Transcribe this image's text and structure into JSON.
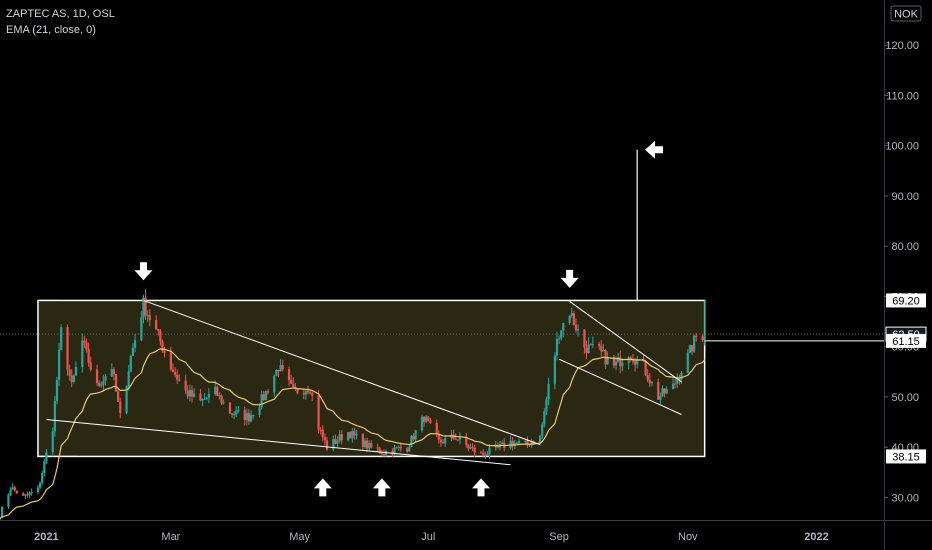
{
  "header": {
    "symbol_line": "ZAPTEC AS, 1D, OSL",
    "indicator_line": "EMA (21, close, 0)"
  },
  "currency_badge": "NOK",
  "colors": {
    "background": "#000000",
    "up_candle": "#26a69a",
    "down_candle": "#ef5350",
    "ema": "#e8c96b",
    "range_fill": "#2a2712",
    "lines": "#ffffff",
    "axis_text": "#b2b5be"
  },
  "chart_data": {
    "type": "candlestick",
    "title": "ZAPTEC AS, 1D, OSL",
    "x_tick_labels": [
      "2021",
      "Mar",
      "May",
      "Jul",
      "Sep",
      "Nov",
      "2022"
    ],
    "y_tick_labels": [
      "30.00",
      "40.00",
      "50.00",
      "60.00",
      "70.00",
      "80.00",
      "90.00",
      "100.00",
      "110.00",
      "120.00"
    ],
    "ylim": [
      25.5,
      129
    ],
    "xlim": [
      "2020-12-10",
      "2022-02-02"
    ],
    "price_tags": [
      {
        "label": "69.20",
        "value": 69.2,
        "style": "white"
      },
      {
        "label": "62.50",
        "value": 62.5,
        "style": "dark"
      },
      {
        "label": "61.15",
        "value": 61.15,
        "style": "white"
      },
      {
        "label": "38.15",
        "value": 38.15,
        "style": "white"
      }
    ],
    "range_box": {
      "low": 38.15,
      "high": 69.2,
      "start": "2020-12-28",
      "end": "2021-11-09"
    },
    "ema_period": 21,
    "projection": {
      "date": "2021-10-08",
      "from": 69.2,
      "to": 99.2
    },
    "trendlines": [
      {
        "from": [
          "2021-02-16",
          69.2
        ],
        "to": [
          "2021-08-23",
          40.5
        ]
      },
      {
        "from": [
          "2021-01-01",
          45.5
        ],
        "to": [
          "2021-08-09",
          36.5
        ]
      },
      {
        "from": [
          "2021-09-06",
          69.0
        ],
        "to": [
          "2021-10-29",
          53.0
        ]
      },
      {
        "from": [
          "2021-09-01",
          57.5
        ],
        "to": [
          "2021-10-29",
          46.5
        ]
      }
    ],
    "arrows": [
      {
        "direction": "down",
        "date": "2021-02-16",
        "price": 75.0
      },
      {
        "direction": "down",
        "date": "2021-09-06",
        "price": 73.5
      },
      {
        "direction": "up",
        "date": "2021-05-12",
        "price": 32.0
      },
      {
        "direction": "up",
        "date": "2021-06-09",
        "price": 32.0
      },
      {
        "direction": "up",
        "date": "2021-07-26",
        "price": 32.0
      },
      {
        "direction": "left",
        "date": "2021-10-16",
        "price": 99.2
      }
    ],
    "anchor_points": [
      [
        "2020-12-10",
        26.5
      ],
      [
        "2020-12-15",
        32
      ],
      [
        "2020-12-21",
        30
      ],
      [
        "2020-12-28",
        31.5
      ],
      [
        "2021-01-04",
        44
      ],
      [
        "2021-01-08",
        63
      ],
      [
        "2021-01-13",
        52
      ],
      [
        "2021-01-18",
        61
      ],
      [
        "2021-01-25",
        52
      ],
      [
        "2021-02-01",
        56
      ],
      [
        "2021-02-05",
        46
      ],
      [
        "2021-02-10",
        58
      ],
      [
        "2021-02-16",
        68.5
      ],
      [
        "2021-02-22",
        63
      ],
      [
        "2021-03-01",
        56
      ],
      [
        "2021-03-08",
        51
      ],
      [
        "2021-03-15",
        49
      ],
      [
        "2021-03-22",
        51
      ],
      [
        "2021-03-29",
        47
      ],
      [
        "2021-04-07",
        46
      ],
      [
        "2021-04-14",
        50
      ],
      [
        "2021-04-21",
        56
      ],
      [
        "2021-04-28",
        51
      ],
      [
        "2021-05-06",
        52
      ],
      [
        "2021-05-10",
        44
      ],
      [
        "2021-05-14",
        40
      ],
      [
        "2021-05-24",
        43
      ],
      [
        "2021-06-03",
        40
      ],
      [
        "2021-06-10",
        39
      ],
      [
        "2021-06-21",
        40
      ],
      [
        "2021-06-29",
        46
      ],
      [
        "2021-07-06",
        41
      ],
      [
        "2021-07-14",
        42
      ],
      [
        "2021-07-20",
        40
      ],
      [
        "2021-07-26",
        38.5
      ],
      [
        "2021-08-02",
        39.5
      ],
      [
        "2021-08-09",
        41
      ],
      [
        "2021-08-16",
        40.5
      ],
      [
        "2021-08-23",
        42
      ],
      [
        "2021-08-27",
        52
      ],
      [
        "2021-09-01",
        63
      ],
      [
        "2021-09-06",
        67
      ],
      [
        "2021-09-13",
        60
      ],
      [
        "2021-09-20",
        59
      ],
      [
        "2021-09-27",
        56
      ],
      [
        "2021-10-04",
        59
      ],
      [
        "2021-10-11",
        56
      ],
      [
        "2021-10-18",
        50
      ],
      [
        "2021-10-25",
        52
      ],
      [
        "2021-11-01",
        58
      ],
      [
        "2021-11-05",
        62
      ],
      [
        "2021-11-09",
        62.5
      ]
    ]
  }
}
